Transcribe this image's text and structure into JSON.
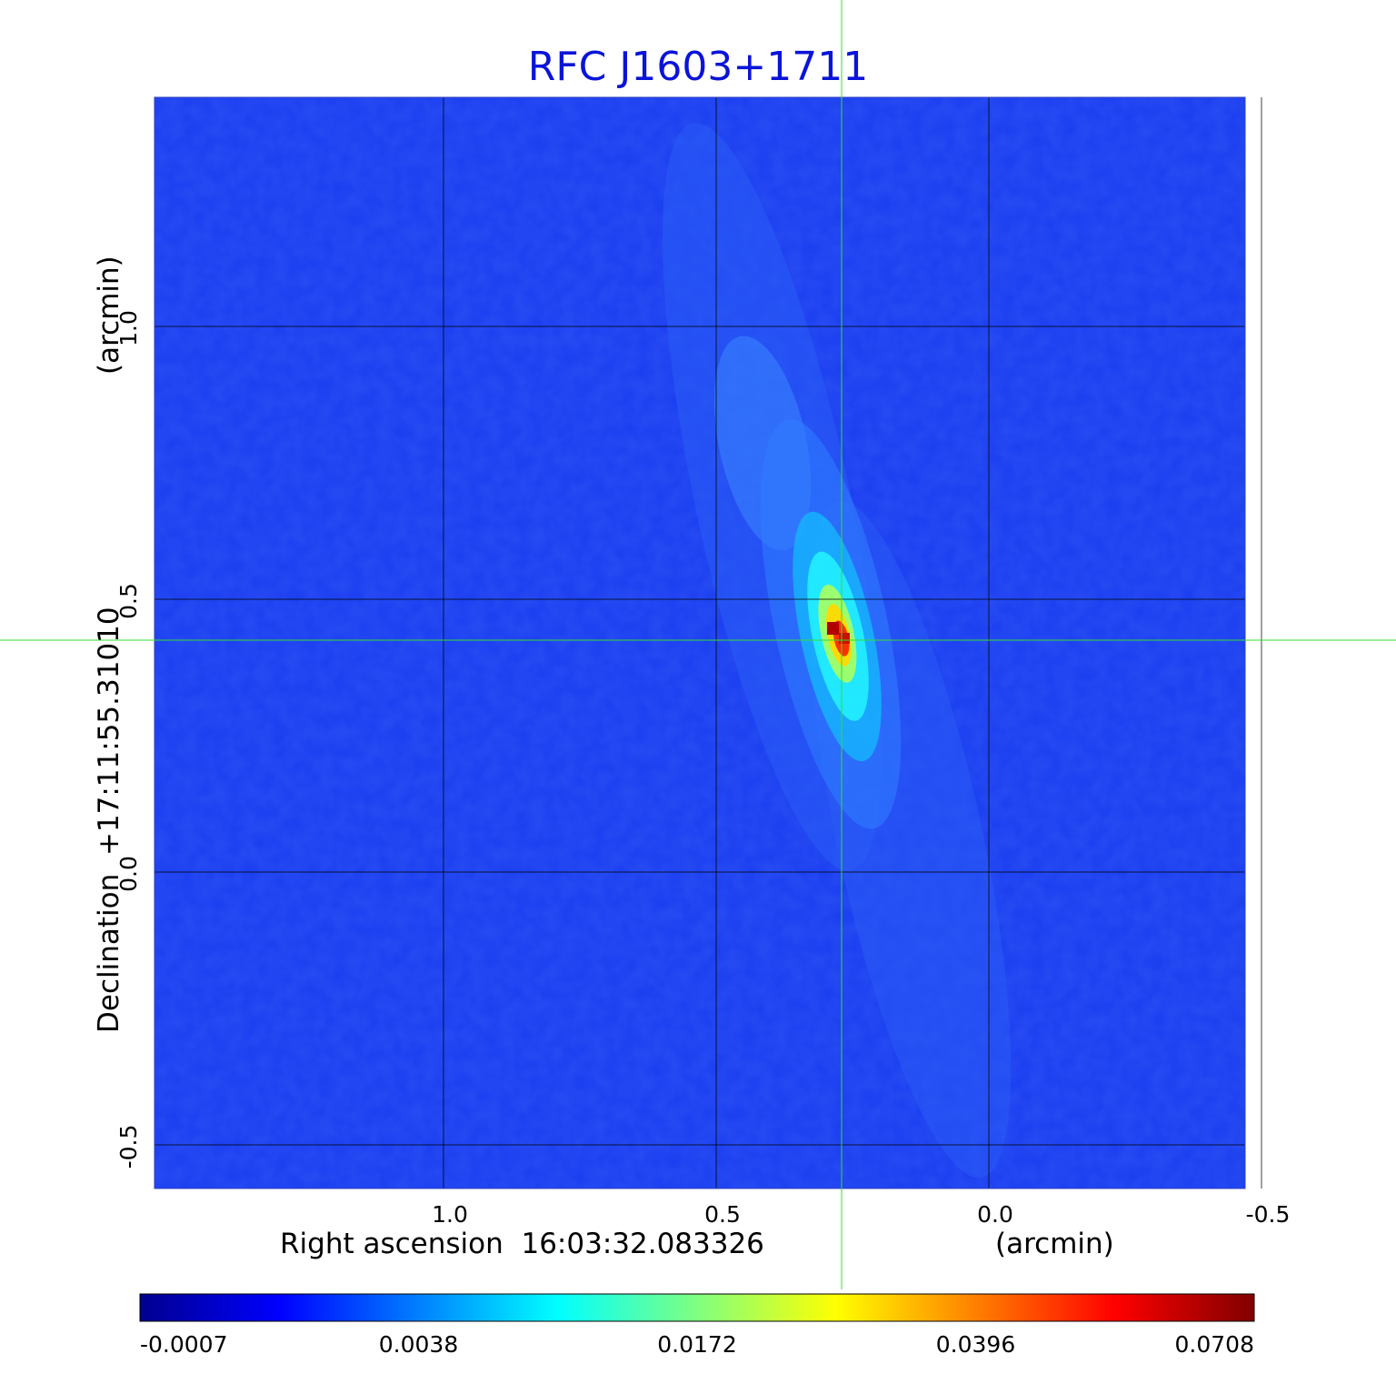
{
  "chart_data": {
    "type": "heatmap",
    "title": "RFC J1603+1711",
    "title_color": "#0a14d8",
    "xlabel": "Right ascension  16:03:32.083326",
    "xunit": "(arcmin)",
    "ylabel": "Declination  +17:11:55.31010",
    "yunit": "(arcmin)",
    "xlim": [
      1.53,
      -0.47
    ],
    "ylim": [
      -0.58,
      1.42
    ],
    "x_ticks": [
      1.0,
      0.5,
      0.0,
      -0.5
    ],
    "x_tick_labels": [
      "1.0",
      "0.5",
      "0.0",
      "-0.5"
    ],
    "y_ticks": [
      1.0,
      0.5,
      0.0,
      -0.5
    ],
    "y_tick_labels": [
      "1.0",
      "0.5",
      "0.0",
      "-0.5"
    ],
    "grid": true,
    "crosshair": {
      "x": 0.27,
      "y": 0.425,
      "color": "#33dd33"
    },
    "source_peak": {
      "x": 0.27,
      "y": 0.425,
      "value": 0.0708
    },
    "colormap": "jet",
    "colorbar": {
      "position": "bottom",
      "tick_labels": [
        "-0.0007",
        "0.0038",
        "0.0172",
        "0.0396",
        "0.0708"
      ]
    }
  }
}
